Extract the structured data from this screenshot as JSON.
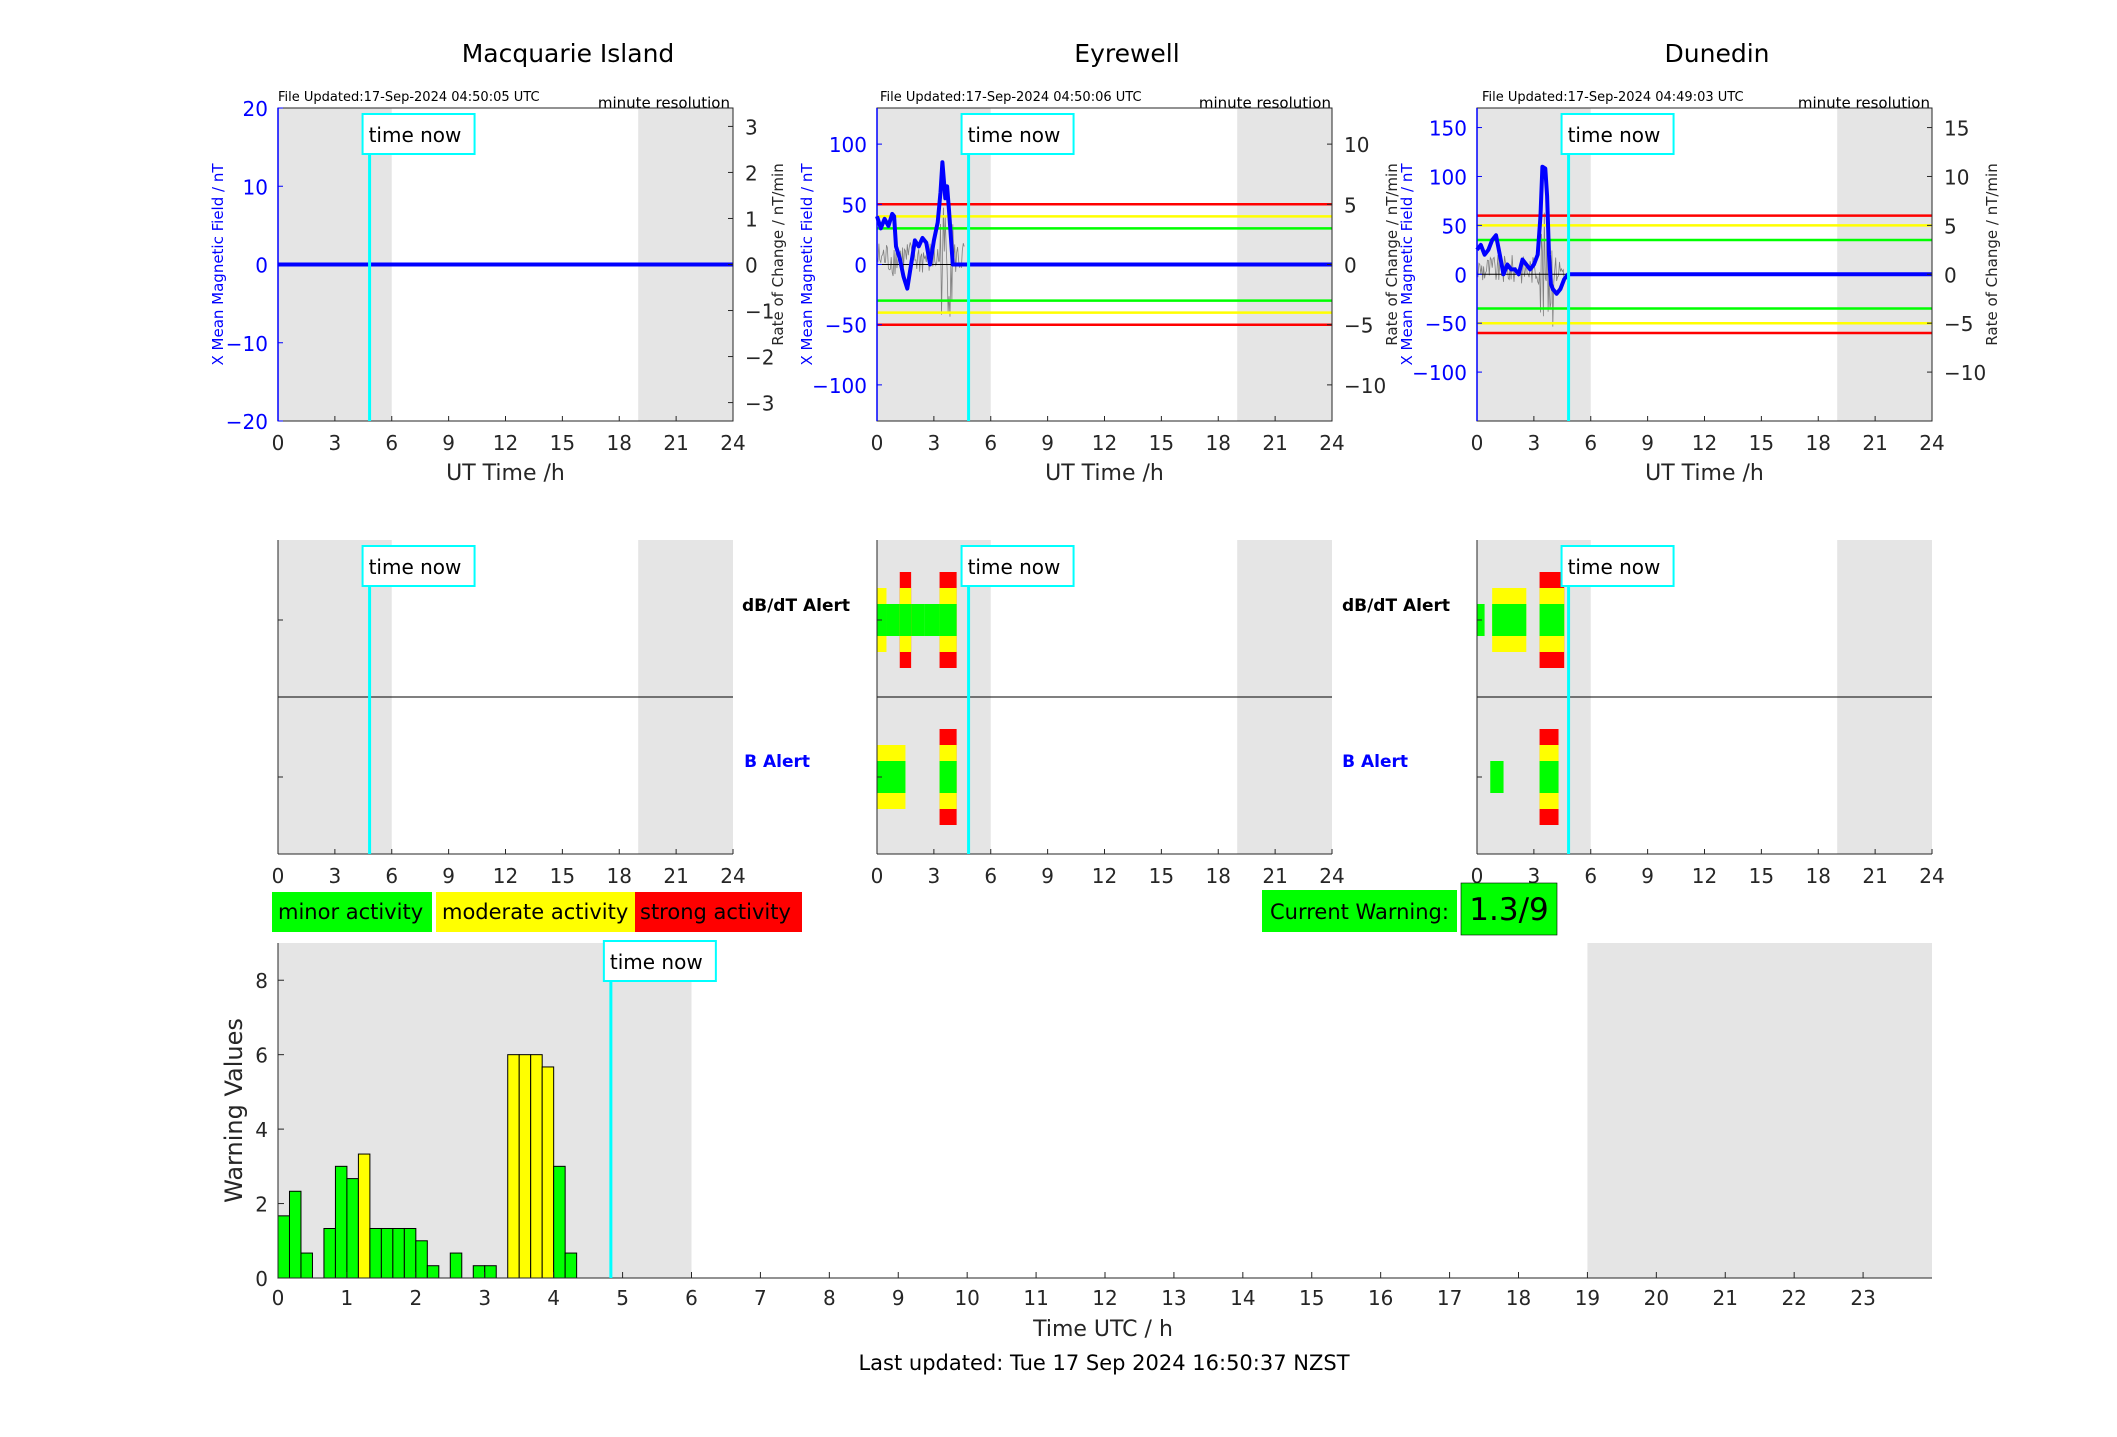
{
  "ui": {
    "time_now_label": "time now",
    "time_now_hour": 4.83,
    "ut_axis_label": "UT Time /h",
    "x_ticks": [
      0,
      3,
      6,
      9,
      12,
      15,
      18,
      21,
      24
    ],
    "daylight_shading": [
      [
        0,
        6
      ],
      [
        19,
        24
      ]
    ],
    "resolution_label": "minute resolution",
    "dbdt_alert_label": "dB/dT Alert",
    "b_alert_label": "B Alert",
    "left_axis_label": "X Mean Magnetic Field / nT",
    "right_axis_label": "Rate of Change / nT/min"
  },
  "legend": {
    "minor": "minor activity",
    "moderate": "moderate activity",
    "strong": "strong activity",
    "current_warning_label": "Current Warning:",
    "current_warning_value": "1.3/9"
  },
  "colors": {
    "minor": "#00ff00",
    "moderate": "#ffff00",
    "strong": "#ff0000",
    "mean_field": "#0000ff",
    "time_now": "#00ffff",
    "shading": "#e5e5e5",
    "rate_trace": "#808080"
  },
  "stations": [
    {
      "name": "Macquarie Island",
      "file_updated": "File Updated:17-Sep-2024 04:50:05 UTC",
      "ylim": [
        -20,
        20
      ],
      "yticks": [
        -20,
        -10,
        0,
        10,
        20
      ],
      "rate_ticks": [
        -3,
        -2,
        -1,
        0,
        1,
        2,
        3
      ],
      "thresholds": []
    },
    {
      "name": "Eyrewell",
      "file_updated": "File Updated:17-Sep-2024 04:50:06 UTC",
      "ylim": [
        -130,
        130
      ],
      "yticks": [
        -100,
        -50,
        0,
        50,
        100
      ],
      "rate_ticks": [
        -10,
        -5,
        0,
        5,
        10
      ],
      "thresholds": [
        50,
        40,
        30
      ]
    },
    {
      "name": "Dunedin",
      "file_updated": "File Updated:17-Sep-2024 04:49:03 UTC",
      "ylim": [
        -150,
        170
      ],
      "yticks": [
        -100,
        -50,
        0,
        50,
        100,
        150
      ],
      "rate_ticks": [
        -10,
        -5,
        0,
        5,
        10,
        15
      ],
      "thresholds": [
        60,
        50,
        35
      ]
    }
  ],
  "chart_data": [
    {
      "type": "line",
      "title": "Macquarie Island",
      "xlabel": "UT Time /h",
      "ylabel": "X Mean Magnetic Field / nT",
      "y2label": "Rate of Change / nT/min",
      "xlim": [
        0,
        24
      ],
      "ylim": [
        -20,
        20
      ],
      "y2lim": [
        -3.4,
        3.4
      ],
      "series": [
        {
          "x": [
            0,
            24
          ],
          "y": [
            0,
            0
          ]
        }
      ]
    },
    {
      "type": "line",
      "title": "Eyrewell",
      "xlabel": "UT Time /h",
      "ylabel": "X Mean Magnetic Field / nT",
      "y2label": "Rate of Change / nT/min",
      "xlim": [
        0,
        24
      ],
      "ylim": [
        -130,
        130
      ],
      "y2lim": [
        -13,
        13
      ],
      "thresholds_nT": {
        "strong": 50,
        "moderate": 40,
        "minor": 30
      },
      "series": [
        {
          "x": [
            0,
            0.2,
            0.4,
            0.6,
            0.8,
            0.9,
            1.0,
            1.2,
            1.4,
            1.6,
            1.8,
            2.0,
            2.2,
            2.4,
            2.6,
            2.8,
            3.0,
            3.2,
            3.35,
            3.45,
            3.6,
            3.7,
            3.8,
            4.0,
            6,
            12,
            18,
            24
          ],
          "y": [
            40,
            30,
            38,
            32,
            42,
            40,
            15,
            5,
            -10,
            -20,
            0,
            20,
            15,
            22,
            18,
            0,
            20,
            35,
            60,
            85,
            55,
            65,
            45,
            0,
            0,
            0,
            0,
            0
          ]
        }
      ]
    },
    {
      "type": "line",
      "title": "Dunedin",
      "xlabel": "UT Time /h",
      "ylabel": "X Mean Magnetic Field / nT",
      "y2label": "Rate of Change / nT/min",
      "xlim": [
        0,
        24
      ],
      "ylim": [
        -150,
        170
      ],
      "y2lim": [
        -15,
        17
      ],
      "thresholds_nT": {
        "strong": 60,
        "moderate": 50,
        "minor": 35
      },
      "series": [
        {
          "x": [
            0,
            0.2,
            0.4,
            0.6,
            0.8,
            1.0,
            1.2,
            1.4,
            1.6,
            1.8,
            2.0,
            2.2,
            2.4,
            2.6,
            2.8,
            3.0,
            3.2,
            3.35,
            3.45,
            3.6,
            3.7,
            3.8,
            3.9,
            4.0,
            4.2,
            4.4,
            4.6,
            4.8,
            6,
            12,
            18,
            24
          ],
          "y": [
            25,
            30,
            20,
            25,
            35,
            40,
            20,
            0,
            10,
            5,
            5,
            0,
            15,
            10,
            5,
            10,
            20,
            60,
            110,
            108,
            80,
            20,
            -10,
            -15,
            -20,
            -15,
            -5,
            0,
            0,
            0,
            0,
            0
          ]
        }
      ]
    },
    {
      "type": "heatmap",
      "title": "Alerts",
      "rows": [
        "dB/dT Alert",
        "B Alert"
      ],
      "levels": [
        "minor",
        "moderate",
        "strong"
      ],
      "stations": [
        {
          "name": "Macquarie Island",
          "dbdt": [],
          "b": []
        },
        {
          "name": "Eyrewell",
          "dbdt": [
            [
              0,
              0.5,
              "moderate"
            ],
            [
              0.5,
              2.5,
              "minor"
            ],
            [
              1.2,
              1.8,
              "strong"
            ],
            [
              2.5,
              3.3,
              "minor"
            ],
            [
              3.3,
              4.2,
              "strong"
            ]
          ],
          "b": [
            [
              0,
              1.5,
              "moderate"
            ],
            [
              3.3,
              4.2,
              "strong"
            ]
          ]
        },
        {
          "name": "Dunedin",
          "dbdt": [
            [
              0,
              0.4,
              "minor"
            ],
            [
              0.8,
              2.6,
              "moderate"
            ],
            [
              3.3,
              4.6,
              "strong"
            ]
          ],
          "b": [
            [
              0.7,
              1.4,
              "minor"
            ],
            [
              3.3,
              4.3,
              "strong"
            ]
          ]
        }
      ]
    },
    {
      "type": "bar",
      "xlabel": "Time UTC / h",
      "ylabel": "Warning Values",
      "xlim": [
        0,
        24
      ],
      "ylim": [
        0,
        9
      ],
      "yticks": [
        0,
        2,
        4,
        6,
        8
      ],
      "xticks": [
        0,
        1,
        2,
        3,
        4,
        5,
        6,
        7,
        8,
        9,
        10,
        11,
        12,
        13,
        14,
        15,
        16,
        17,
        18,
        19,
        20,
        21,
        22,
        23
      ],
      "bar_width_h": 0.1667,
      "x": [
        0.0833,
        0.25,
        0.4167,
        0.75,
        0.9167,
        1.0833,
        1.25,
        1.4167,
        1.5833,
        1.75,
        1.9167,
        2.0833,
        2.25,
        2.5833,
        2.9167,
        3.0833,
        3.4167,
        3.5833,
        3.75,
        3.9167,
        4.0833,
        4.25
      ],
      "values": [
        1.67,
        2.33,
        0.67,
        1.33,
        3.0,
        2.67,
        3.33,
        1.33,
        1.33,
        1.33,
        1.33,
        1.0,
        0.33,
        0.67,
        0.33,
        0.33,
        6.0,
        6.0,
        6.0,
        5.67,
        3.0,
        0.67
      ],
      "level": [
        "minor",
        "minor",
        "minor",
        "minor",
        "minor",
        "minor",
        "moderate",
        "minor",
        "minor",
        "minor",
        "minor",
        "minor",
        "minor",
        "minor",
        "minor",
        "minor",
        "moderate",
        "moderate",
        "moderate",
        "moderate",
        "minor",
        "minor"
      ]
    }
  ],
  "footer": {
    "last_updated": "Last updated: Tue 17 Sep 2024 16:50:37 NZST"
  }
}
